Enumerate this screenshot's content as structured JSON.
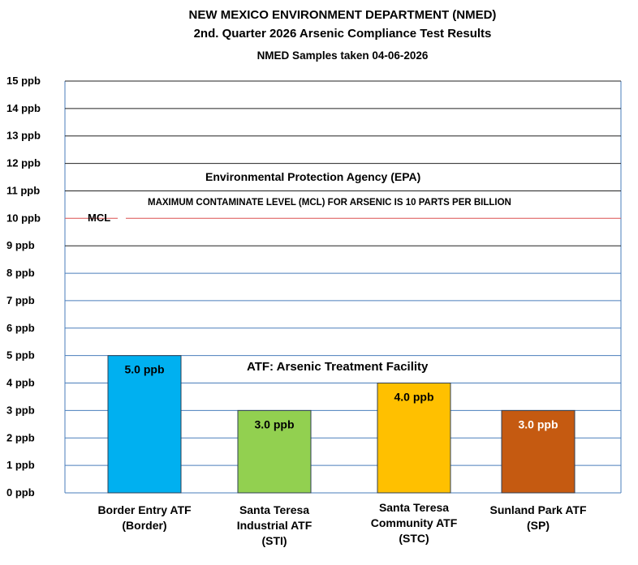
{
  "title_line1": "NEW MEXICO ENVIRONMENT DEPARTMENT (NMED)",
  "title_line2": "2nd. Quarter 2026 Arsenic Compliance Test Results",
  "subtitle": "NMED Samples taken 04-06-2026",
  "annotations": {
    "epa": "Environmental Protection Agency (EPA)",
    "mcl_statement": "MAXIMUM CONTAMINATE LEVEL (MCL) FOR ARSENIC IS 10 PARTS PER BILLION",
    "mcl_label": "MCL",
    "atf": "ATF: Arsenic Treatment Facility"
  },
  "chart_data": {
    "type": "bar",
    "categories": [
      [
        "Border Entry ATF",
        "(Border)"
      ],
      [
        "Santa Teresa",
        "Industrial ATF",
        "(STI)"
      ],
      [
        "Santa Teresa",
        "Community ATF",
        "(STC)"
      ],
      [
        "Sunland Park ATF",
        "(SP)"
      ]
    ],
    "values": [
      5.0,
      3.0,
      4.0,
      3.0
    ],
    "data_labels": [
      "5.0 ppb",
      "3.0 ppb",
      "4.0 ppb",
      "3.0 ppb"
    ],
    "colors": [
      "#00b0f0",
      "#92d050",
      "#ffc000",
      "#c55a11"
    ],
    "label_colors": [
      "#000000",
      "#000000",
      "#000000",
      "#ffffff"
    ],
    "ylim": [
      0,
      15
    ],
    "yticks": [
      "0 ppb",
      "1 ppb",
      "2 ppb",
      "3 ppb",
      "4 ppb",
      "5 ppb",
      "6 ppb",
      "7 ppb",
      "8 ppb",
      "9 ppb",
      "10 ppb",
      "11 ppb",
      "12 ppb",
      "13 ppb",
      "14 ppb",
      "15 ppb"
    ],
    "mcl_value": 10,
    "mcl_color": "#e06666",
    "grid": true,
    "legend": "none"
  }
}
